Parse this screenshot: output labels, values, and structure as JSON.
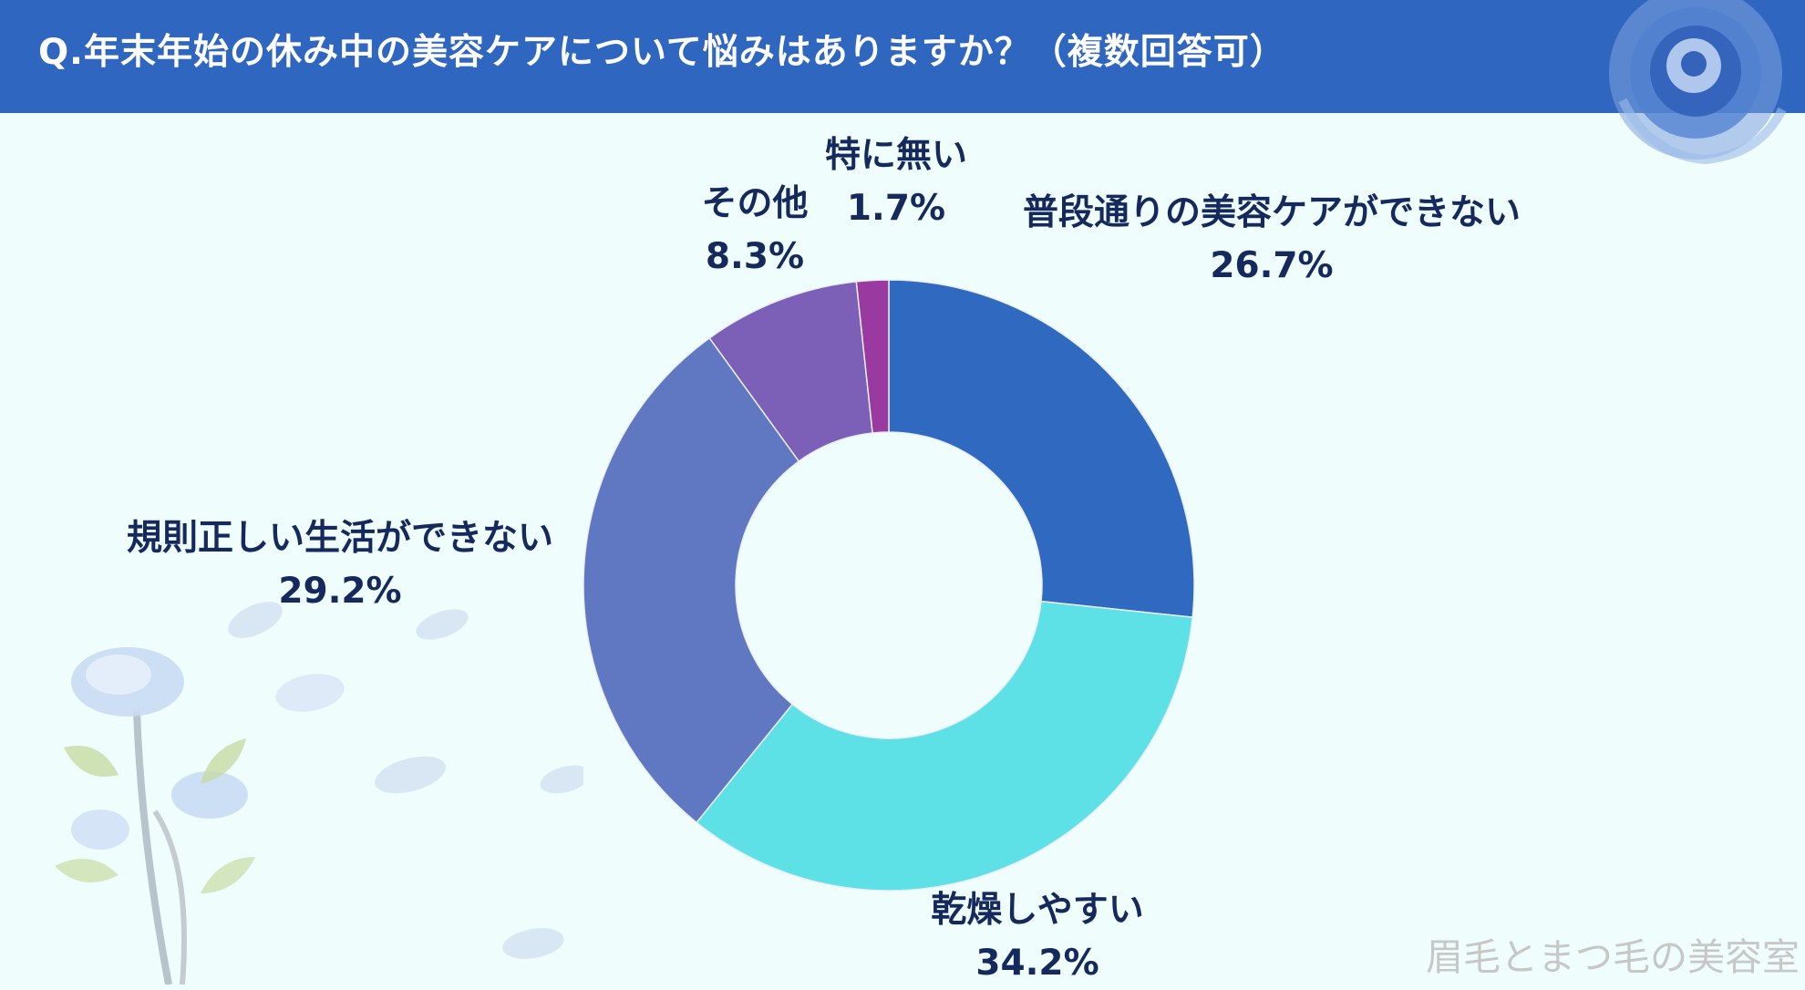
{
  "header": {
    "title": "Q.年末年始の休み中の美容ケアについて悩みはありますか？（複数回答可）"
  },
  "watermark": "眉毛とまつ毛の美容室",
  "colors": {
    "header": "#2f66bf",
    "background": "#effdfd",
    "label": "#16295c"
  },
  "chart_data": {
    "type": "pie",
    "variant": "donut",
    "unit": "%",
    "slices": [
      {
        "label": "普段通りの美容ケアができない",
        "value": 26.7,
        "value_label": "26.7%",
        "color": "#2f69c0"
      },
      {
        "label": "乾燥しやすい",
        "value": 34.2,
        "value_label": "34.2%",
        "color": "#5de0e6"
      },
      {
        "label": "規則正しい生活ができない",
        "value": 29.2,
        "value_label": "29.2%",
        "color": "#6077c1"
      },
      {
        "label": "その他",
        "value": 8.3,
        "value_label": "8.3%",
        "color": "#7c5fb6"
      },
      {
        "label": "特に無い",
        "value": 1.7,
        "value_label": "1.7%",
        "color": "#9a3aa0"
      }
    ]
  }
}
